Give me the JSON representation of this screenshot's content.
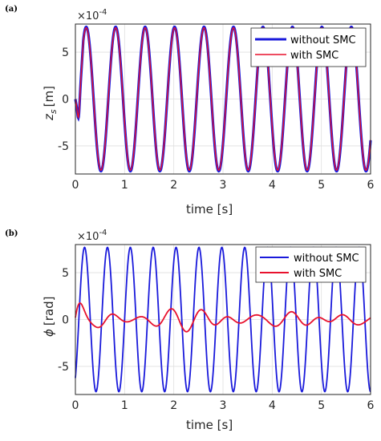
{
  "chart_data": [
    {
      "type": "line",
      "panel_label": "(a)",
      "xlabel": "time [s]",
      "ylabel": "z",
      "ylabel_sub": "s",
      "ylabel_unit": "[m]",
      "y_multiplier_base": "×10",
      "y_multiplier_exp": "-4",
      "xlim": [
        0,
        6
      ],
      "ylim": [
        -8,
        8
      ],
      "xticks": [
        0,
        1,
        2,
        3,
        4,
        5,
        6
      ],
      "xtick_labels": [
        "0",
        "1",
        "2",
        "3",
        "4",
        "5",
        "6"
      ],
      "yticks": [
        5,
        0,
        -5
      ],
      "ytick_labels": [
        "5",
        "0",
        "-5"
      ],
      "grid": true,
      "legend_position": "top-right",
      "series": [
        {
          "name": "without SMC",
          "color": "#1a1adb",
          "model": {
            "amplitude": 7.7,
            "frequency_hz": 1.67,
            "transient_dip": -3.1,
            "transient_time": 0.07
          }
        },
        {
          "name": "with SMC",
          "color": "#e8112d",
          "model": {
            "amplitude": 7.6,
            "frequency_hz": 1.67,
            "transient_dip": -3.0,
            "transient_time": 0.07
          }
        }
      ]
    },
    {
      "type": "line",
      "panel_label": "(b)",
      "xlabel": "time [s]",
      "ylabel": "ϕ",
      "ylabel_unit": "[rad]",
      "y_multiplier_base": "×10",
      "y_multiplier_exp": "-4",
      "xlim": [
        0,
        6
      ],
      "ylim": [
        -8,
        8
      ],
      "xticks": [
        0,
        1,
        2,
        3,
        4,
        5,
        6
      ],
      "xtick_labels": [
        "0",
        "1",
        "2",
        "3",
        "4",
        "5",
        "6"
      ],
      "yticks": [
        5,
        0,
        -5
      ],
      "ytick_labels": [
        "5",
        "0",
        "-5"
      ],
      "grid": true,
      "legend_position": "top-right",
      "series": [
        {
          "name": "without SMC",
          "color": "#1a1adb",
          "model": {
            "amplitude": 7.7,
            "frequency_hz": 2.15
          }
        },
        {
          "name": "with SMC",
          "color": "#e8112d",
          "model": {
            "amplitude": 0.8,
            "frequency_hz": 1.67,
            "initial_peak": 1.2
          }
        }
      ]
    }
  ]
}
